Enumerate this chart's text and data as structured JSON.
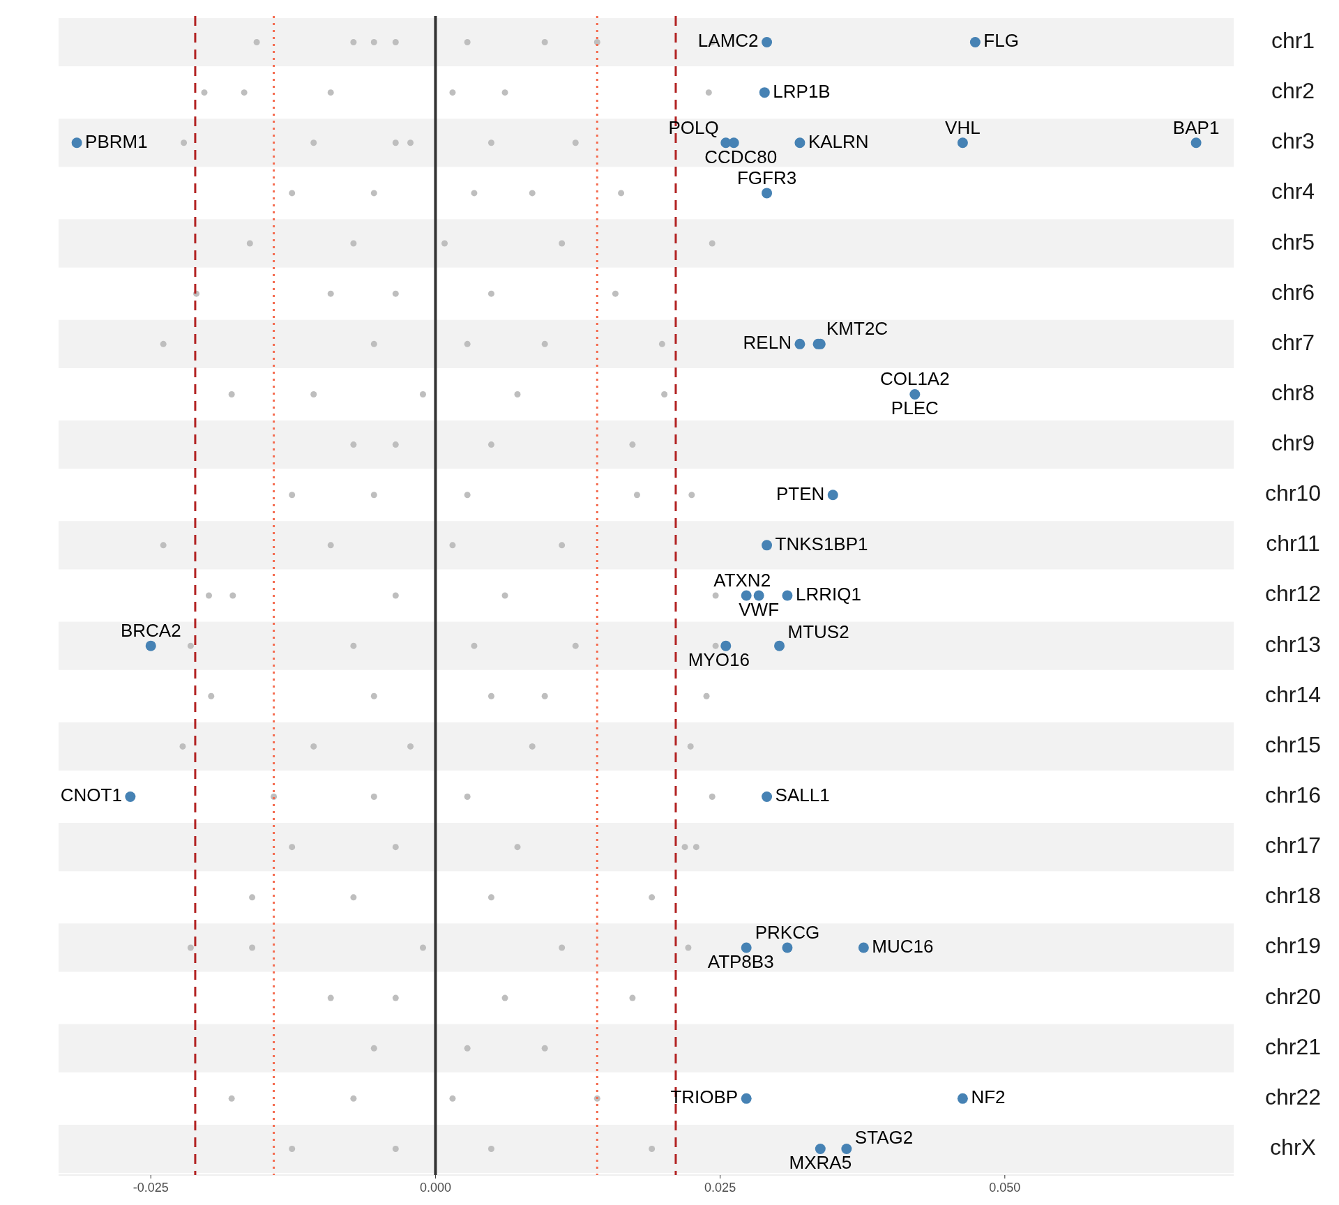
{
  "chart_data": {
    "type": "scatter",
    "orientation": "horizontal",
    "xlim": [
      -0.0331,
      0.0701
    ],
    "xticks": [
      {
        "value": -0.025,
        "label": "-0.025"
      },
      {
        "value": 0,
        "label": "0.000"
      },
      {
        "value": 0.025,
        "label": "0.025"
      },
      {
        "value": 0.05,
        "label": "0.050"
      }
    ],
    "categories": [
      "chr1",
      "chr2",
      "chr3",
      "chr4",
      "chr5",
      "chr6",
      "chr7",
      "chr8",
      "chr9",
      "chr10",
      "chr11",
      "chr12",
      "chr13",
      "chr14",
      "chr15",
      "chr16",
      "chr17",
      "chr18",
      "chr19",
      "chr20",
      "chr21",
      "chr22",
      "chrX"
    ],
    "grid": false,
    "marker": "circle",
    "bands": [
      {
        "axis": "y",
        "from": "chr1",
        "to": "chr1",
        "color": "#f2f2f2"
      },
      {
        "axis": "y",
        "from": "chr3",
        "to": "chr3",
        "color": "#f2f2f2"
      },
      {
        "axis": "y",
        "from": "chr5",
        "to": "chr5",
        "color": "#f2f2f2"
      },
      {
        "axis": "y",
        "from": "chr7",
        "to": "chr7",
        "color": "#f2f2f2"
      },
      {
        "axis": "y",
        "from": "chr9",
        "to": "chr9",
        "color": "#f2f2f2"
      },
      {
        "axis": "y",
        "from": "chr11",
        "to": "chr11",
        "color": "#f2f2f2"
      },
      {
        "axis": "y",
        "from": "chr13",
        "to": "chr13",
        "color": "#f2f2f2"
      },
      {
        "axis": "y",
        "from": "chr15",
        "to": "chr15",
        "color": "#f2f2f2"
      },
      {
        "axis": "y",
        "from": "chr17",
        "to": "chr17",
        "color": "#f2f2f2"
      },
      {
        "axis": "y",
        "from": "chr19",
        "to": "chr19",
        "color": "#f2f2f2"
      },
      {
        "axis": "y",
        "from": "chr21",
        "to": "chr21",
        "color": "#f2f2f2"
      },
      {
        "axis": "y",
        "from": "chrX",
        "to": "chrX",
        "color": "#f2f2f2"
      }
    ],
    "ref_lines": [
      {
        "axis": "x",
        "value": -0.0211,
        "color": "#b22222",
        "line_style": "dashed"
      },
      {
        "axis": "x",
        "value": 0.0211,
        "color": "#b22222",
        "line_style": "dashed"
      },
      {
        "axis": "x",
        "value": -0.0142,
        "color": "#f46a4e",
        "line_style": "dotted"
      },
      {
        "axis": "x",
        "value": 0.0142,
        "color": "#f46a4e",
        "line_style": "dotted"
      },
      {
        "axis": "x",
        "value": 0,
        "color": "#333333",
        "line_style": "solid"
      }
    ],
    "series": [
      {
        "color": "#bebebe",
        "x": [
          "chr1",
          "chr1",
          "chr1",
          "chr1",
          "chr1",
          "chr1",
          "chr1",
          "chr1",
          "chr2",
          "chr2",
          "chr2",
          "chr2",
          "chr2",
          "chr2",
          "chr3",
          "chr3",
          "chr3",
          "chr3",
          "chr3",
          "chr3",
          "chr4",
          "chr4",
          "chr4",
          "chr4",
          "chr4",
          "chr5",
          "chr5",
          "chr5",
          "chr5",
          "chr5",
          "chr6",
          "chr6",
          "chr6",
          "chr6",
          "chr6",
          "chr7",
          "chr7",
          "chr7",
          "chr7",
          "chr7",
          "chr8",
          "chr8",
          "chr8",
          "chr8",
          "chr8",
          "chr9",
          "chr9",
          "chr9",
          "chr9",
          "chr10",
          "chr10",
          "chr10",
          "chr10",
          "chr10",
          "chr11",
          "chr11",
          "chr11",
          "chr11",
          "chr12",
          "chr12",
          "chr12",
          "chr12",
          "chr12",
          "chr13",
          "chr13",
          "chr13",
          "chr13",
          "chr13",
          "chr14",
          "chr14",
          "chr14",
          "chr14",
          "chr14",
          "chr15",
          "chr15",
          "chr15",
          "chr15",
          "chr15",
          "chr16",
          "chr16",
          "chr16",
          "chr16",
          "chr17",
          "chr17",
          "chr17",
          "chr17",
          "chr17",
          "chr18",
          "chr18",
          "chr18",
          "chr18",
          "chr19",
          "chr19",
          "chr19",
          "chr19",
          "chr19",
          "chr20",
          "chr20",
          "chr20",
          "chr20",
          "chr21",
          "chr21",
          "chr21",
          "chr22",
          "chr22",
          "chr22",
          "chr22",
          "chrX",
          "chrX",
          "chrX",
          "chrX"
        ],
        "values": [
          -0.0157,
          0.0243,
          -0.0072,
          -0.0035,
          0.0028,
          0.0096,
          -0.0054,
          0.0142,
          -0.0203,
          0.024,
          -0.0168,
          -0.0092,
          0.0015,
          0.0061,
          -0.0221,
          -0.0107,
          -0.0035,
          0.0049,
          0.0123,
          -0.0022,
          0.0163,
          -0.0126,
          -0.0054,
          0.0034,
          0.0085,
          0.0243,
          -0.0163,
          -0.0072,
          0.0008,
          0.0111,
          -0.021,
          -0.0092,
          -0.0035,
          0.0049,
          0.0158,
          -0.0239,
          0.0199,
          -0.0054,
          0.0028,
          0.0096,
          -0.0179,
          0.0201,
          -0.0107,
          -0.0011,
          0.0072,
          -0.0072,
          -0.0035,
          0.0049,
          0.0173,
          0.0225,
          0.0177,
          -0.0126,
          -0.0054,
          0.0028,
          -0.0239,
          -0.0092,
          0.0015,
          0.0111,
          -0.0178,
          -0.0199,
          0.0246,
          -0.0035,
          0.0061,
          0.0246,
          -0.0215,
          -0.0072,
          0.0034,
          0.0123,
          -0.0197,
          0.0238,
          -0.0054,
          0.0049,
          0.0096,
          -0.0222,
          0.0224,
          -0.0107,
          -0.0022,
          0.0085,
          0.0243,
          -0.0142,
          -0.0054,
          0.0028,
          0.0219,
          0.0229,
          -0.0126,
          -0.0035,
          0.0072,
          -0.0161,
          0.019,
          -0.0072,
          0.0049,
          -0.0215,
          0.0222,
          -0.0161,
          -0.0011,
          0.0111,
          0.0173,
          -0.0092,
          -0.0035,
          0.0061,
          -0.0054,
          0.0028,
          0.0096,
          -0.0179,
          -0.0072,
          0.0015,
          0.0142,
          -0.0126,
          -0.0035,
          0.0049,
          0.019
        ]
      },
      {
        "color": "#4682b4",
        "x": [
          "chr1",
          "chr1",
          "chr2",
          "chr3",
          "chr3",
          "chr3",
          "chr3",
          "chr3",
          "chr3",
          "chr4",
          "chr7",
          "chr7",
          "chr7",
          "chr8",
          "chr10",
          "chr11",
          "chr12",
          "chr12",
          "chr12",
          "chr13",
          "chr13",
          "chr13",
          "chr16",
          "chr16",
          "chr19",
          "chr19",
          "chr19",
          "chr22",
          "chr22",
          "chrX",
          "chrX"
        ],
        "values": [
          0.0291,
          0.0474,
          0.0289,
          0.0255,
          0.0262,
          0.032,
          0.0463,
          0.0668,
          -0.0315,
          0.0291,
          0.0336,
          0.0338,
          0.032,
          0.0421,
          0.0349,
          0.0291,
          0.0273,
          0.0309,
          0.0284,
          0.0255,
          0.0302,
          -0.025,
          -0.0268,
          0.0291,
          0.0309,
          0.0273,
          0.0376,
          0.0273,
          0.0463,
          0.0361,
          0.0338
        ]
      }
    ],
    "annotations": [
      {
        "text": "LAMC2",
        "x": 0.0291,
        "y": "chr1"
      },
      {
        "text": "FLG",
        "x": 0.0474,
        "y": "chr1"
      },
      {
        "text": "LRP1B",
        "x": 0.0289,
        "y": "chr2"
      },
      {
        "text": "POLQ",
        "x": 0.0255,
        "y": "chr3"
      },
      {
        "text": "CCDC80",
        "x": 0.0262,
        "y": "chr3"
      },
      {
        "text": "KALRN",
        "x": 0.032,
        "y": "chr3"
      },
      {
        "text": "VHL",
        "x": 0.0463,
        "y": "chr3"
      },
      {
        "text": "BAP1",
        "x": 0.0668,
        "y": "chr3"
      },
      {
        "text": "PBRM1",
        "x": -0.0315,
        "y": "chr3"
      },
      {
        "text": "FGFR3",
        "x": 0.0291,
        "y": "chr4"
      },
      {
        "text": "KMT2C",
        "x": 0.0336,
        "y": "chr7"
      },
      {
        "text": "RELN",
        "x": 0.032,
        "y": "chr7"
      },
      {
        "text": "COL1A2",
        "x": 0.0421,
        "y": "chr8"
      },
      {
        "text": "PLEC",
        "x": 0.0421,
        "y": "chr8"
      },
      {
        "text": "PTEN",
        "x": 0.0349,
        "y": "chr10"
      },
      {
        "text": "TNKS1BP1",
        "x": 0.0291,
        "y": "chr11"
      },
      {
        "text": "ATXN2",
        "x": 0.0273,
        "y": "chr12"
      },
      {
        "text": "LRRIQ1",
        "x": 0.0309,
        "y": "chr12"
      },
      {
        "text": "VWF",
        "x": 0.0284,
        "y": "chr12"
      },
      {
        "text": "MYO16",
        "x": 0.0255,
        "y": "chr13"
      },
      {
        "text": "MTUS2",
        "x": 0.0302,
        "y": "chr13"
      },
      {
        "text": "BRCA2",
        "x": -0.025,
        "y": "chr13"
      },
      {
        "text": "CNOT1",
        "x": -0.0268,
        "y": "chr16"
      },
      {
        "text": "SALL1",
        "x": 0.0291,
        "y": "chr16"
      },
      {
        "text": "PRKCG",
        "x": 0.0309,
        "y": "chr19"
      },
      {
        "text": "ATP8B3",
        "x": 0.0273,
        "y": "chr19"
      },
      {
        "text": "MUC16",
        "x": 0.0376,
        "y": "chr19"
      },
      {
        "text": "TRIOBP",
        "x": 0.0273,
        "y": "chr22"
      },
      {
        "text": "NF2",
        "x": 0.0463,
        "y": "chr22"
      },
      {
        "text": "STAG2",
        "x": 0.0361,
        "y": "chrX"
      },
      {
        "text": "MXRA5",
        "x": 0.0338,
        "y": "chrX"
      }
    ]
  }
}
